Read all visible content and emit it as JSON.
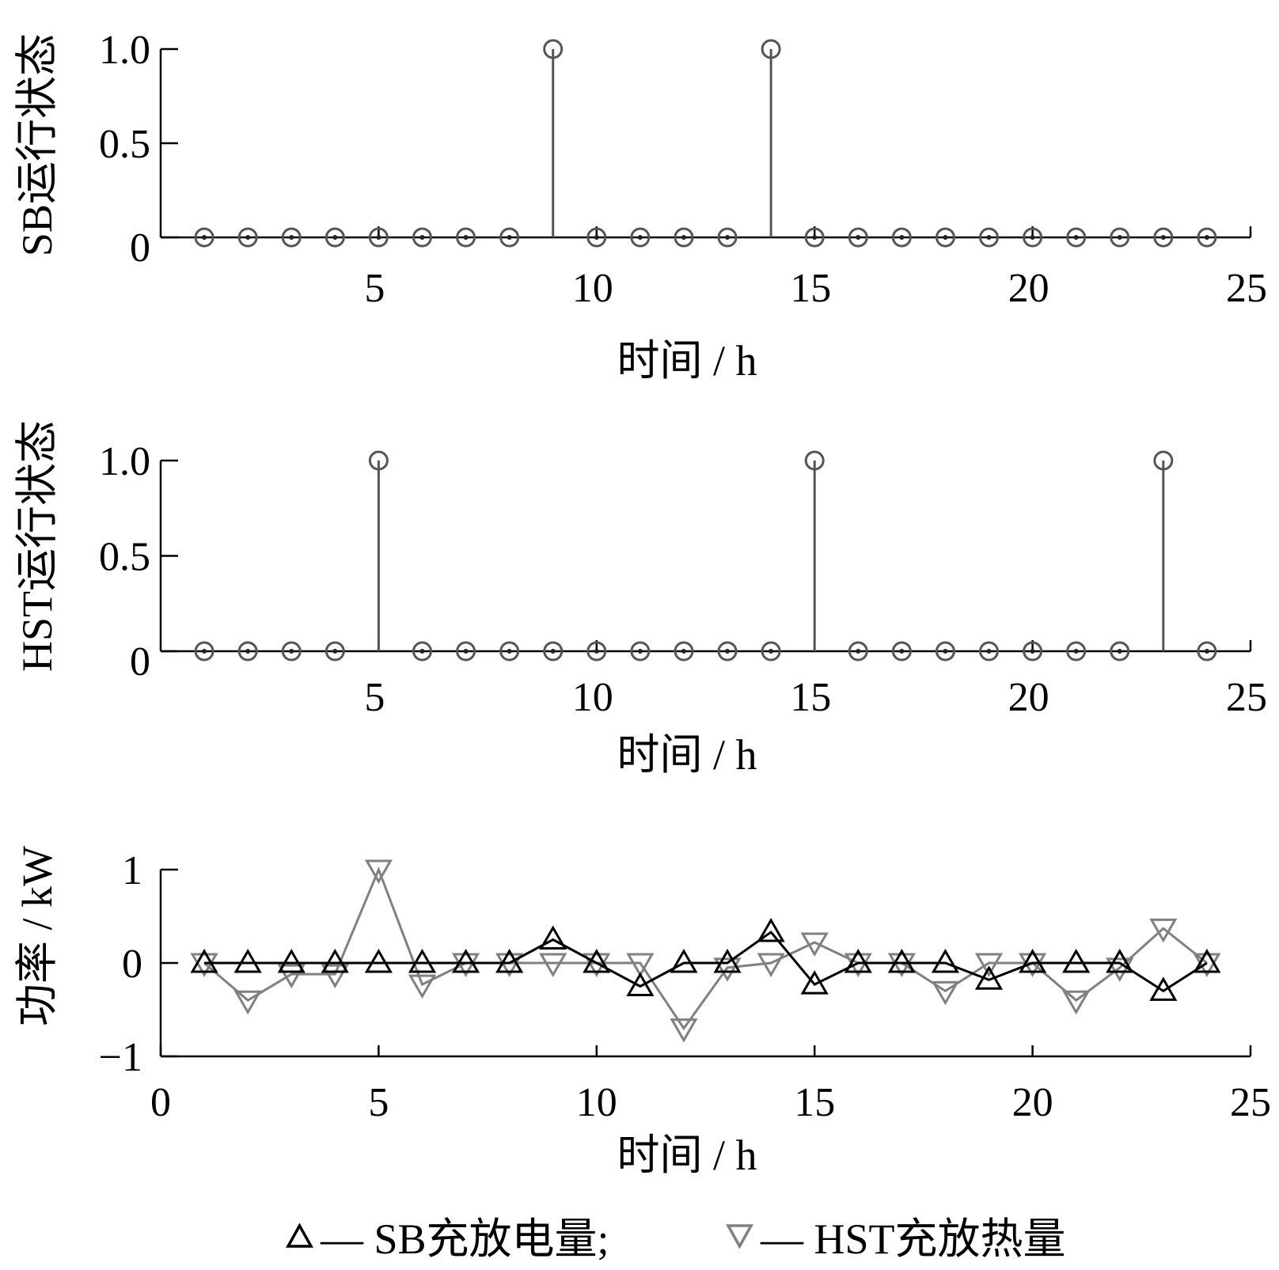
{
  "chart_data": [
    {
      "type": "stem",
      "ylabel": "SB运行状态",
      "xlabel": "时间 / h",
      "xlim": [
        0,
        25
      ],
      "ylim": [
        0,
        1
      ],
      "xticks": [
        "5",
        "10",
        "15",
        "20",
        "25"
      ],
      "yticks": [
        "0",
        "0.5",
        "1.0"
      ],
      "x": [
        1,
        2,
        3,
        4,
        5,
        6,
        7,
        8,
        9,
        10,
        11,
        12,
        13,
        14,
        15,
        16,
        17,
        18,
        19,
        20,
        21,
        22,
        23,
        24
      ],
      "values": [
        0,
        0,
        0,
        0,
        0,
        0,
        0,
        0,
        1,
        0,
        0,
        0,
        0,
        1,
        0,
        0,
        0,
        0,
        0,
        0,
        0,
        0,
        0,
        0
      ],
      "colors": {
        "stem": "#555555",
        "axis": "#000000"
      }
    },
    {
      "type": "stem",
      "ylabel": "HST运行状态",
      "xlabel": "时间 / h",
      "xlim": [
        0,
        25
      ],
      "ylim": [
        0,
        1
      ],
      "xticks": [
        "5",
        "10",
        "15",
        "20",
        "25"
      ],
      "yticks": [
        "0",
        "0.5",
        "1.0"
      ],
      "x": [
        1,
        2,
        3,
        4,
        5,
        6,
        7,
        8,
        9,
        10,
        11,
        12,
        13,
        14,
        15,
        16,
        17,
        18,
        19,
        20,
        21,
        22,
        23,
        24
      ],
      "values": [
        0,
        0,
        0,
        0,
        1,
        0,
        0,
        0,
        0,
        0,
        0,
        0,
        0,
        0,
        1,
        0,
        0,
        0,
        0,
        0,
        0,
        0,
        1,
        0
      ],
      "colors": {
        "stem": "#555555",
        "axis": "#000000"
      }
    },
    {
      "type": "line",
      "ylabel": "功率 / kW",
      "xlabel": "时间 / h",
      "xlim": [
        0,
        25
      ],
      "ylim": [
        -1,
        1
      ],
      "xticks": [
        "0",
        "5",
        "10",
        "15",
        "20",
        "25"
      ],
      "yticks": [
        "−1",
        "0",
        "1"
      ],
      "x": [
        1,
        2,
        3,
        4,
        5,
        6,
        7,
        8,
        9,
        10,
        11,
        12,
        13,
        14,
        15,
        16,
        17,
        18,
        19,
        20,
        21,
        22,
        23,
        24
      ],
      "series": [
        {
          "name": "SB充放电量",
          "marker": "triangle-up",
          "color": "#000000",
          "values": [
            0,
            0,
            0,
            0,
            0,
            0,
            0,
            0,
            0.25,
            0,
            -0.25,
            0,
            0,
            0.33,
            -0.23,
            0,
            0,
            0,
            -0.18,
            0,
            0,
            0,
            -0.3,
            0
          ]
        },
        {
          "name": "HST充放热量",
          "marker": "triangle-down",
          "color": "#808080",
          "values": [
            0,
            -0.4,
            -0.12,
            -0.12,
            1.0,
            -0.23,
            0,
            0,
            0,
            0,
            0,
            -0.7,
            -0.05,
            0,
            0.22,
            0,
            0,
            -0.3,
            0,
            0,
            -0.4,
            -0.05,
            0.37,
            0
          ]
        }
      ],
      "legend": [
        {
          "label": "— SB充放电量;"
        },
        {
          "label": "— HST充放热量"
        }
      ],
      "legend_position": "bottom"
    }
  ]
}
